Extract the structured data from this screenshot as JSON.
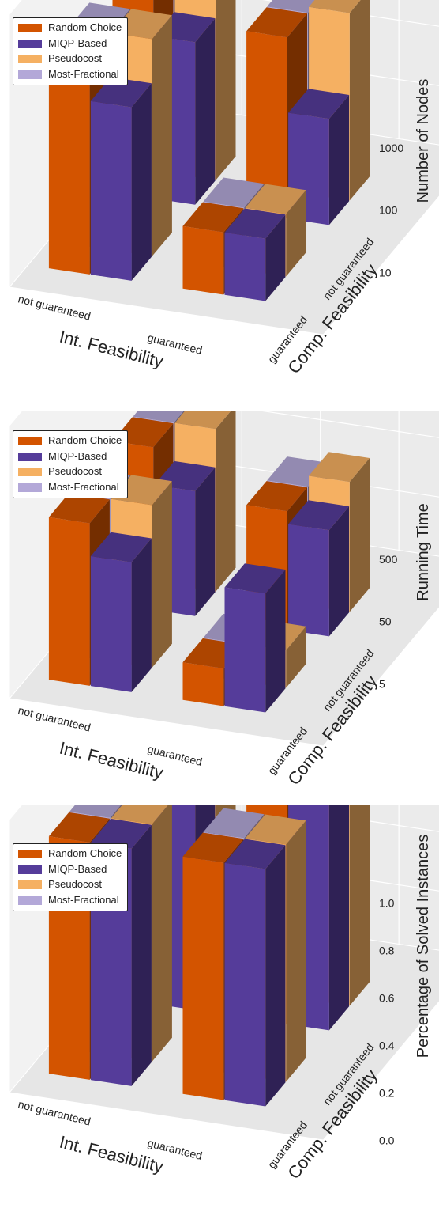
{
  "legend": {
    "items": [
      {
        "label": "Random Choice",
        "color": "#d35400"
      },
      {
        "label": "MIQP-Based",
        "color": "#553c9a"
      },
      {
        "label": "Pseudocost",
        "color": "#f5b062"
      },
      {
        "label": "Most-Fractional",
        "color": "#b3a8d8"
      }
    ]
  },
  "chart_data": [
    {
      "type": "bar3d",
      "x_axis": {
        "label": "Int. Feasibility",
        "categories": [
          "not guaranteed",
          "guaranteed"
        ]
      },
      "y_axis": {
        "label": "Comp. Feasibility",
        "categories": [
          "guaranteed",
          "not guaranteed"
        ]
      },
      "z_axis": {
        "label": "Number of Nodes",
        "scale": "log",
        "ticks": [
          "10",
          "100",
          "1000"
        ]
      },
      "series": [
        {
          "name": "Random Choice",
          "values": {
            "not guaranteed|guaranteed": 3000,
            "not guaranteed|not guaranteed": 3000,
            "guaranteed|guaranteed": 10,
            "guaranteed|not guaranteed": 800
          }
        },
        {
          "name": "MIQP-Based",
          "values": {
            "not guaranteed|guaranteed": 600,
            "not guaranteed|not guaranteed": 400,
            "guaranteed|guaranteed": 10,
            "guaranteed|not guaranteed": 50
          }
        },
        {
          "name": "Pseudocost",
          "values": {
            "not guaranteed|guaranteed": 3000,
            "not guaranteed|not guaranteed": 3000,
            "guaranteed|guaranteed": 10,
            "guaranteed|not guaranteed": 1000
          }
        },
        {
          "name": "Most-Fractional",
          "values": {
            "not guaranteed|guaranteed": 3000,
            "not guaranteed|not guaranteed": 3000,
            "guaranteed|guaranteed": 10,
            "guaranteed|not guaranteed": 800
          }
        }
      ]
    },
    {
      "type": "bar3d",
      "x_axis": {
        "label": "Int. Feasibility",
        "categories": [
          "not guaranteed",
          "guaranteed"
        ]
      },
      "y_axis": {
        "label": "Comp. Feasibility",
        "categories": [
          "guaranteed",
          "not guaranteed"
        ]
      },
      "z_axis": {
        "label": "Running Time",
        "scale": "log",
        "ticks": [
          "5",
          "50",
          "500"
        ]
      },
      "series": [
        {
          "name": "Random Choice",
          "values": {
            "not guaranteed|guaranteed": 200,
            "not guaranteed|not guaranteed": 200,
            "guaranteed|guaranteed": 2,
            "guaranteed|not guaranteed": 40
          }
        },
        {
          "name": "MIQP-Based",
          "values": {
            "not guaranteed|guaranteed": 60,
            "not guaranteed|not guaranteed": 50,
            "guaranteed|guaranteed": 40,
            "guaranteed|not guaranteed": 25
          }
        },
        {
          "name": "Pseudocost",
          "values": {
            "not guaranteed|guaranteed": 200,
            "not guaranteed|not guaranteed": 200,
            "guaranteed|guaranteed": 2,
            "guaranteed|not guaranteed": 60
          }
        },
        {
          "name": "Most-Fractional",
          "values": {
            "not guaranteed|guaranteed": 200,
            "not guaranteed|not guaranteed": 200,
            "guaranteed|guaranteed": 2,
            "guaranteed|not guaranteed": 40
          }
        }
      ]
    },
    {
      "type": "bar3d",
      "x_axis": {
        "label": "Int. Feasibility",
        "categories": [
          "not guaranteed",
          "guaranteed"
        ]
      },
      "y_axis": {
        "label": "Comp. Feasibility",
        "categories": [
          "guaranteed",
          "not guaranteed"
        ]
      },
      "z_axis": {
        "label": "Percentage of Solved Instances",
        "scale": "linear",
        "range": [
          0,
          1
        ],
        "ticks": [
          "0.0",
          "0.2",
          "0.4",
          "0.6",
          "0.8",
          "1.0"
        ]
      },
      "series": [
        {
          "name": "Random Choice",
          "values": {
            "not guaranteed|guaranteed": 1.0,
            "not guaranteed|not guaranteed": 1.0,
            "guaranteed|guaranteed": 1.0,
            "guaranteed|not guaranteed": 1.0
          }
        },
        {
          "name": "MIQP-Based",
          "values": {
            "not guaranteed|guaranteed": 1.0,
            "not guaranteed|not guaranteed": 1.0,
            "guaranteed|guaranteed": 1.0,
            "guaranteed|not guaranteed": 1.0
          }
        },
        {
          "name": "Pseudocost",
          "values": {
            "not guaranteed|guaranteed": 1.0,
            "not guaranteed|not guaranteed": 1.0,
            "guaranteed|guaranteed": 1.0,
            "guaranteed|not guaranteed": 1.0
          }
        },
        {
          "name": "Most-Fractional",
          "values": {
            "not guaranteed|guaranteed": 1.0,
            "not guaranteed|not guaranteed": 1.0,
            "guaranteed|guaranteed": 1.0,
            "guaranteed|not guaranteed": 1.0
          }
        }
      ]
    }
  ]
}
